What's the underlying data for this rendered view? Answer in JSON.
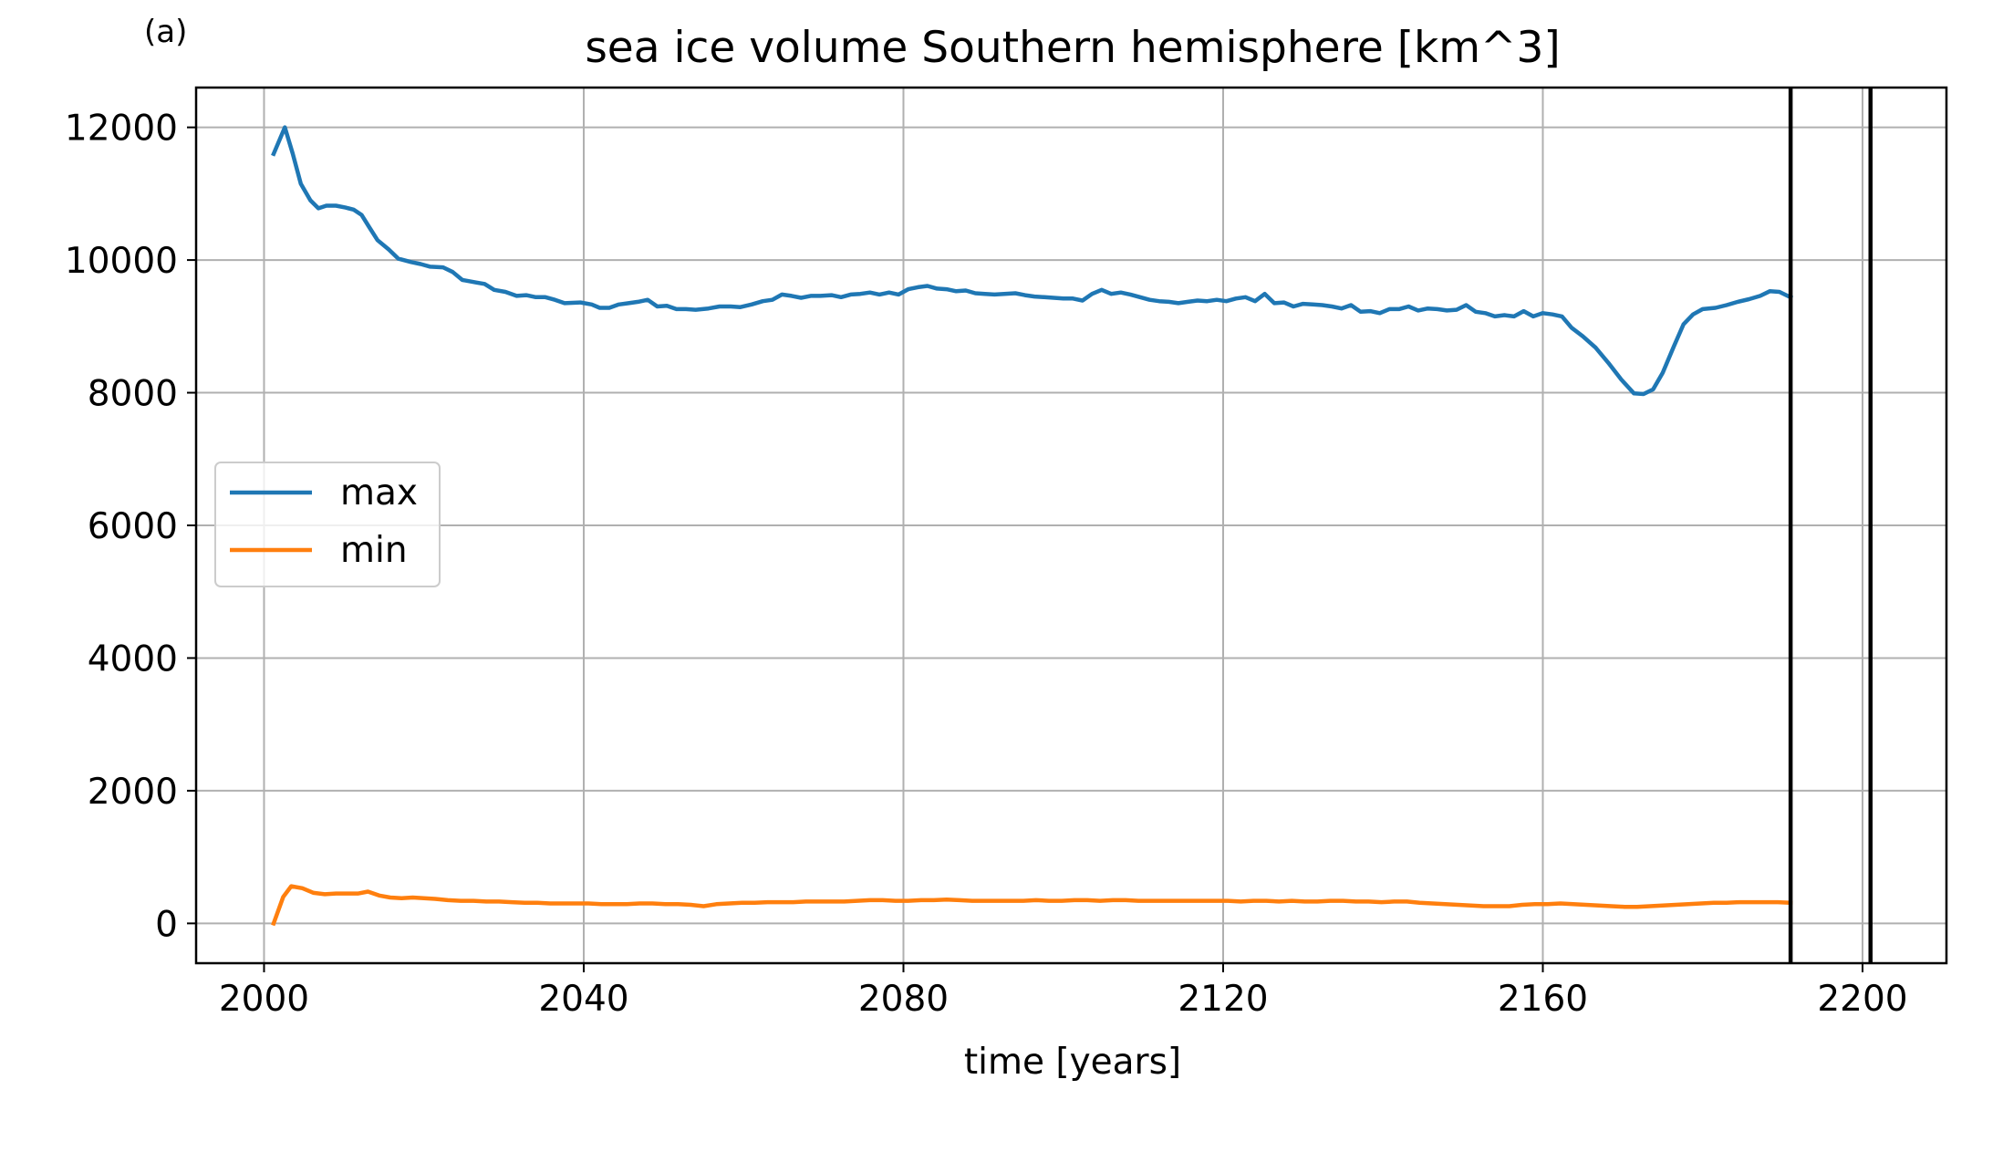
{
  "panel_label": "(a)",
  "chart_data": {
    "type": "line",
    "title": "sea ice volume Southern hemisphere [km^3]",
    "xlabel": "time [years]",
    "ylabel": "",
    "xlim": [
      1991.5,
      2210.5
    ],
    "ylim": [
      -600,
      12600
    ],
    "xticks": [
      2000,
      2040,
      2080,
      2120,
      2160,
      2200
    ],
    "yticks": [
      0,
      2000,
      4000,
      6000,
      8000,
      10000,
      12000
    ],
    "grid": true,
    "legend_position": "center-left",
    "vlines": [
      2191,
      2201
    ],
    "vline_color": "#000000",
    "series": [
      {
        "name": "max",
        "color": "#1f77b4",
        "points": [
          [
            2001.2,
            11600
          ],
          [
            2002.6,
            12000
          ],
          [
            2003.6,
            11600
          ],
          [
            2004.6,
            11150
          ],
          [
            2005.8,
            10900
          ],
          [
            2006.8,
            10780
          ],
          [
            2007.8,
            10820
          ],
          [
            2009,
            10820
          ],
          [
            2010.2,
            10790
          ],
          [
            2011.2,
            10760
          ],
          [
            2012.2,
            10680
          ],
          [
            2013.2,
            10490
          ],
          [
            2014.2,
            10300
          ],
          [
            2015.6,
            10160
          ],
          [
            2016.8,
            10020
          ],
          [
            2018.4,
            9970
          ],
          [
            2019.6,
            9940
          ],
          [
            2020.8,
            9900
          ],
          [
            2022.4,
            9890
          ],
          [
            2023.6,
            9820
          ],
          [
            2024.8,
            9700
          ],
          [
            2026.6,
            9660
          ],
          [
            2027.6,
            9640
          ],
          [
            2028.8,
            9550
          ],
          [
            2030.2,
            9520
          ],
          [
            2031.6,
            9460
          ],
          [
            2032.8,
            9470
          ],
          [
            2034,
            9440
          ],
          [
            2035.2,
            9440
          ],
          [
            2036.4,
            9400
          ],
          [
            2037.6,
            9350
          ],
          [
            2039.6,
            9360
          ],
          [
            2041,
            9330
          ],
          [
            2042,
            9280
          ],
          [
            2043.2,
            9280
          ],
          [
            2044.4,
            9330
          ],
          [
            2045.6,
            9350
          ],
          [
            2046.8,
            9370
          ],
          [
            2048,
            9400
          ],
          [
            2049.2,
            9300
          ],
          [
            2050.4,
            9310
          ],
          [
            2051.6,
            9260
          ],
          [
            2052.8,
            9260
          ],
          [
            2054,
            9250
          ],
          [
            2055.6,
            9270
          ],
          [
            2057,
            9300
          ],
          [
            2058.4,
            9300
          ],
          [
            2059.6,
            9290
          ],
          [
            2061,
            9330
          ],
          [
            2062.4,
            9380
          ],
          [
            2063.6,
            9400
          ],
          [
            2064.8,
            9480
          ],
          [
            2066,
            9460
          ],
          [
            2067.2,
            9430
          ],
          [
            2068.4,
            9460
          ],
          [
            2069.6,
            9460
          ],
          [
            2071,
            9470
          ],
          [
            2072.2,
            9440
          ],
          [
            2073.4,
            9480
          ],
          [
            2074.6,
            9490
          ],
          [
            2075.8,
            9510
          ],
          [
            2077,
            9480
          ],
          [
            2078.2,
            9510
          ],
          [
            2079.4,
            9480
          ],
          [
            2080.6,
            9560
          ],
          [
            2081.8,
            9590
          ],
          [
            2083,
            9610
          ],
          [
            2084.2,
            9570
          ],
          [
            2085.4,
            9560
          ],
          [
            2086.6,
            9530
          ],
          [
            2087.8,
            9540
          ],
          [
            2089,
            9500
          ],
          [
            2090.2,
            9490
          ],
          [
            2091.4,
            9480
          ],
          [
            2092.6,
            9490
          ],
          [
            2094,
            9500
          ],
          [
            2095.2,
            9470
          ],
          [
            2096.4,
            9450
          ],
          [
            2097.6,
            9440
          ],
          [
            2098.8,
            9430
          ],
          [
            2100,
            9420
          ],
          [
            2101.2,
            9420
          ],
          [
            2102.4,
            9390
          ],
          [
            2103.6,
            9490
          ],
          [
            2104.8,
            9550
          ],
          [
            2106,
            9490
          ],
          [
            2107.2,
            9510
          ],
          [
            2108.4,
            9480
          ],
          [
            2109.6,
            9440
          ],
          [
            2110.8,
            9400
          ],
          [
            2112,
            9380
          ],
          [
            2113.2,
            9370
          ],
          [
            2114.4,
            9350
          ],
          [
            2115.6,
            9370
          ],
          [
            2116.8,
            9390
          ],
          [
            2118,
            9380
          ],
          [
            2119.2,
            9400
          ],
          [
            2120.4,
            9380
          ],
          [
            2121.6,
            9420
          ],
          [
            2122.8,
            9440
          ],
          [
            2124,
            9380
          ],
          [
            2125.2,
            9490
          ],
          [
            2126.4,
            9350
          ],
          [
            2127.6,
            9360
          ],
          [
            2128.8,
            9300
          ],
          [
            2130,
            9340
          ],
          [
            2131.2,
            9330
          ],
          [
            2132.4,
            9320
          ],
          [
            2133.6,
            9300
          ],
          [
            2134.8,
            9270
          ],
          [
            2136,
            9320
          ],
          [
            2137.2,
            9220
          ],
          [
            2138.4,
            9230
          ],
          [
            2139.6,
            9200
          ],
          [
            2140.8,
            9260
          ],
          [
            2142,
            9260
          ],
          [
            2143.2,
            9300
          ],
          [
            2144.4,
            9240
          ],
          [
            2145.6,
            9270
          ],
          [
            2146.8,
            9260
          ],
          [
            2148,
            9240
          ],
          [
            2149.2,
            9250
          ],
          [
            2150.4,
            9320
          ],
          [
            2151.6,
            9220
          ],
          [
            2152.8,
            9200
          ],
          [
            2154,
            9150
          ],
          [
            2155.2,
            9170
          ],
          [
            2156.4,
            9150
          ],
          [
            2157.6,
            9230
          ],
          [
            2158.8,
            9150
          ],
          [
            2160,
            9200
          ],
          [
            2161.2,
            9180
          ],
          [
            2162.4,
            9150
          ],
          [
            2163.6,
            8980
          ],
          [
            2165,
            8850
          ],
          [
            2166.6,
            8680
          ],
          [
            2168.2,
            8450
          ],
          [
            2169.8,
            8200
          ],
          [
            2171.4,
            7990
          ],
          [
            2172.6,
            7980
          ],
          [
            2173.8,
            8050
          ],
          [
            2175,
            8300
          ],
          [
            2176.4,
            8700
          ],
          [
            2177.6,
            9030
          ],
          [
            2178.8,
            9180
          ],
          [
            2180,
            9260
          ],
          [
            2181.6,
            9280
          ],
          [
            2183,
            9320
          ],
          [
            2184.4,
            9370
          ],
          [
            2185.8,
            9410
          ],
          [
            2187.2,
            9460
          ],
          [
            2188.4,
            9530
          ],
          [
            2189.6,
            9520
          ],
          [
            2190.8,
            9450
          ],
          [
            2191,
            9440
          ]
        ]
      },
      {
        "name": "min",
        "color": "#ff7f0e",
        "points": [
          [
            2001.2,
            0
          ],
          [
            2002.4,
            400
          ],
          [
            2003.4,
            560
          ],
          [
            2004.8,
            530
          ],
          [
            2006.2,
            460
          ],
          [
            2007.6,
            440
          ],
          [
            2009,
            450
          ],
          [
            2010.4,
            450
          ],
          [
            2011.8,
            450
          ],
          [
            2013,
            480
          ],
          [
            2014.4,
            420
          ],
          [
            2015.8,
            390
          ],
          [
            2017.2,
            380
          ],
          [
            2018.6,
            390
          ],
          [
            2020,
            380
          ],
          [
            2021.4,
            370
          ],
          [
            2023,
            350
          ],
          [
            2024.6,
            340
          ],
          [
            2026.2,
            340
          ],
          [
            2027.8,
            330
          ],
          [
            2029.4,
            330
          ],
          [
            2031,
            320
          ],
          [
            2032.6,
            310
          ],
          [
            2034.2,
            310
          ],
          [
            2035.8,
            300
          ],
          [
            2037.4,
            300
          ],
          [
            2039,
            300
          ],
          [
            2040.6,
            300
          ],
          [
            2042.2,
            290
          ],
          [
            2043.8,
            290
          ],
          [
            2045.4,
            290
          ],
          [
            2047,
            300
          ],
          [
            2048.6,
            300
          ],
          [
            2050.2,
            290
          ],
          [
            2051.8,
            290
          ],
          [
            2053.4,
            280
          ],
          [
            2055,
            260
          ],
          [
            2056.6,
            290
          ],
          [
            2058.2,
            300
          ],
          [
            2059.8,
            310
          ],
          [
            2061.4,
            310
          ],
          [
            2063,
            320
          ],
          [
            2064.6,
            320
          ],
          [
            2066.2,
            320
          ],
          [
            2067.8,
            330
          ],
          [
            2069.4,
            330
          ],
          [
            2071,
            330
          ],
          [
            2072.6,
            330
          ],
          [
            2074.2,
            340
          ],
          [
            2075.8,
            350
          ],
          [
            2077.4,
            350
          ],
          [
            2079,
            340
          ],
          [
            2080.6,
            340
          ],
          [
            2082.2,
            350
          ],
          [
            2083.8,
            350
          ],
          [
            2085.4,
            360
          ],
          [
            2087,
            350
          ],
          [
            2088.6,
            340
          ],
          [
            2090.2,
            340
          ],
          [
            2091.8,
            340
          ],
          [
            2093.4,
            340
          ],
          [
            2095,
            340
          ],
          [
            2096.6,
            350
          ],
          [
            2098.2,
            340
          ],
          [
            2099.8,
            340
          ],
          [
            2101.4,
            350
          ],
          [
            2103,
            350
          ],
          [
            2104.6,
            340
          ],
          [
            2106.2,
            350
          ],
          [
            2107.8,
            350
          ],
          [
            2109.4,
            340
          ],
          [
            2111,
            340
          ],
          [
            2112.6,
            340
          ],
          [
            2114.2,
            340
          ],
          [
            2115.8,
            340
          ],
          [
            2117.4,
            340
          ],
          [
            2119,
            340
          ],
          [
            2120.6,
            340
          ],
          [
            2122.2,
            330
          ],
          [
            2123.8,
            340
          ],
          [
            2125.4,
            340
          ],
          [
            2127,
            330
          ],
          [
            2128.6,
            340
          ],
          [
            2130.2,
            330
          ],
          [
            2131.8,
            330
          ],
          [
            2133.4,
            340
          ],
          [
            2135,
            340
          ],
          [
            2136.6,
            330
          ],
          [
            2138.2,
            330
          ],
          [
            2139.8,
            320
          ],
          [
            2141.4,
            330
          ],
          [
            2143,
            330
          ],
          [
            2144.6,
            310
          ],
          [
            2146.2,
            300
          ],
          [
            2147.8,
            290
          ],
          [
            2149.4,
            280
          ],
          [
            2151,
            270
          ],
          [
            2152.6,
            260
          ],
          [
            2154.2,
            260
          ],
          [
            2155.8,
            260
          ],
          [
            2157.4,
            280
          ],
          [
            2159,
            290
          ],
          [
            2160.6,
            290
          ],
          [
            2162.2,
            300
          ],
          [
            2163.8,
            290
          ],
          [
            2165.4,
            280
          ],
          [
            2167,
            270
          ],
          [
            2168.6,
            260
          ],
          [
            2170.2,
            250
          ],
          [
            2171.8,
            250
          ],
          [
            2173.4,
            260
          ],
          [
            2175,
            270
          ],
          [
            2176.6,
            280
          ],
          [
            2178.2,
            290
          ],
          [
            2179.8,
            300
          ],
          [
            2181.4,
            310
          ],
          [
            2183,
            310
          ],
          [
            2184.6,
            320
          ],
          [
            2186.2,
            320
          ],
          [
            2187.8,
            320
          ],
          [
            2189.4,
            320
          ],
          [
            2191,
            310
          ]
        ]
      }
    ]
  }
}
